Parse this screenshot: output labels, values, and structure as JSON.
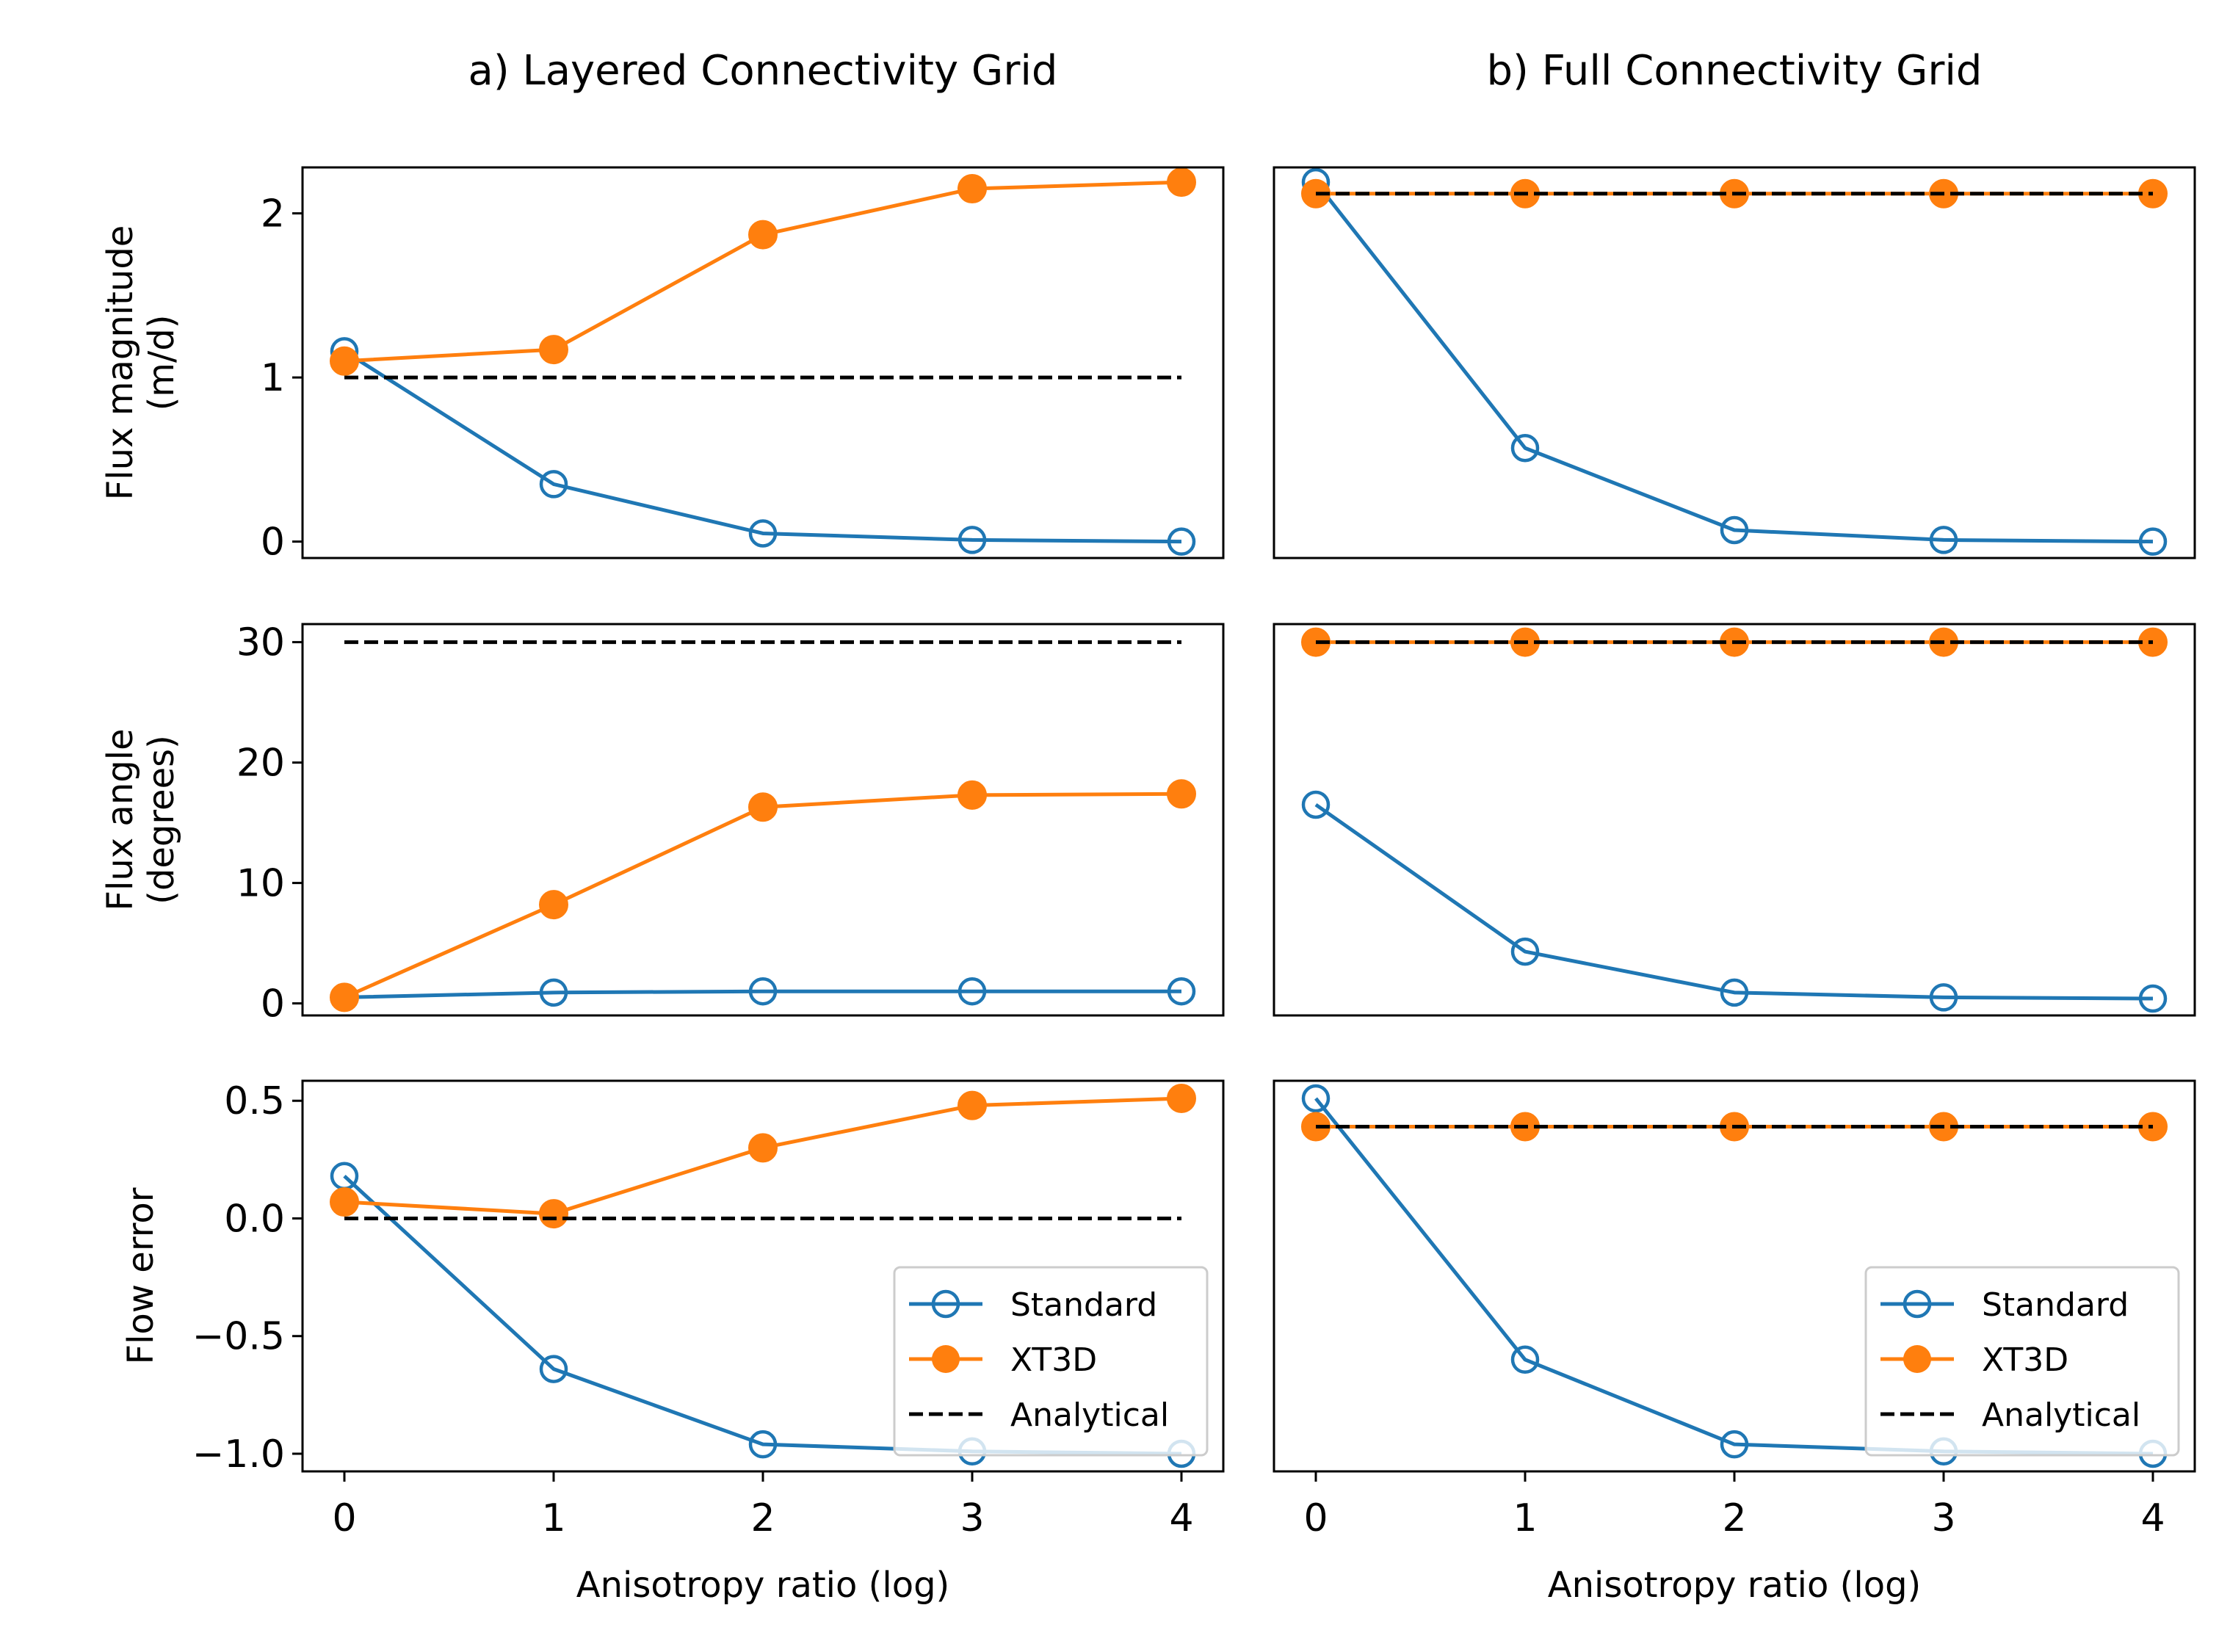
{
  "columns": [
    {
      "title": "a) Layered Connectivity Grid"
    },
    {
      "title": "b) Full Connectivity Grid"
    }
  ],
  "rows": [
    {
      "ylabel_lines": [
        "Flux magnitude",
        "(m/d)"
      ],
      "ylim": [
        -0.1,
        2.28
      ],
      "yticks": [
        0,
        1,
        2
      ],
      "ytick_labels": [
        "0",
        "1",
        "2"
      ]
    },
    {
      "ylabel_lines": [
        "Flux angle",
        "(degrees)"
      ],
      "ylim": [
        -1.0,
        31.5
      ],
      "yticks": [
        0,
        10,
        20,
        30
      ],
      "ytick_labels": [
        "0",
        "10",
        "20",
        "30"
      ]
    },
    {
      "ylabel_lines": [
        "Flow error"
      ],
      "ylim": [
        -1.075,
        0.585
      ],
      "yticks": [
        -1.0,
        -0.5,
        0.0,
        0.5
      ],
      "ytick_labels": [
        "−1.0",
        "−0.5",
        "0.0",
        "0.5"
      ]
    }
  ],
  "xaxis": {
    "label": "Anisotropy ratio (log)",
    "xlim": [
      -0.2,
      4.2
    ],
    "ticks": [
      0,
      1,
      2,
      3,
      4
    ],
    "tick_labels": [
      "0",
      "1",
      "2",
      "3",
      "4"
    ]
  },
  "legend": {
    "location": "lower-right",
    "entries": [
      {
        "label": "Standard"
      },
      {
        "label": "XT3D"
      },
      {
        "label": "Analytical"
      }
    ]
  },
  "colors": {
    "standard": "#1f77b4",
    "xt3d": "#ff7f0e",
    "analytical": "#000000"
  },
  "chart_data": [
    {
      "type": "line",
      "title": "a) Layered Connectivity Grid",
      "xlabel": "",
      "ylabel": "Flux magnitude (m/d)",
      "ylim": [
        -0.1,
        2.28
      ],
      "x": [
        0,
        1,
        2,
        3,
        4
      ],
      "series": [
        {
          "name": "Standard",
          "values": [
            1.16,
            0.35,
            0.05,
            0.01,
            0.0
          ]
        },
        {
          "name": "XT3D",
          "values": [
            1.1,
            1.17,
            1.87,
            2.15,
            2.19
          ]
        },
        {
          "name": "Analytical",
          "values": [
            1.0,
            1.0,
            1.0,
            1.0,
            1.0
          ]
        }
      ]
    },
    {
      "type": "line",
      "title": "b) Full Connectivity Grid",
      "xlabel": "",
      "ylabel": "",
      "ylim": [
        -0.1,
        2.28
      ],
      "x": [
        0,
        1,
        2,
        3,
        4
      ],
      "series": [
        {
          "name": "Standard",
          "values": [
            2.19,
            0.57,
            0.07,
            0.01,
            0.0
          ]
        },
        {
          "name": "XT3D",
          "values": [
            2.12,
            2.12,
            2.12,
            2.12,
            2.12
          ]
        },
        {
          "name": "Analytical",
          "values": [
            2.12,
            2.12,
            2.12,
            2.12,
            2.12
          ]
        }
      ]
    },
    {
      "type": "line",
      "title": "",
      "xlabel": "",
      "ylabel": "Flux angle (degrees)",
      "ylim": [
        -1.0,
        31.5
      ],
      "x": [
        0,
        1,
        2,
        3,
        4
      ],
      "series": [
        {
          "name": "Standard",
          "values": [
            0.5,
            0.9,
            1.0,
            1.0,
            1.0
          ]
        },
        {
          "name": "XT3D",
          "values": [
            0.5,
            8.2,
            16.3,
            17.3,
            17.4
          ]
        },
        {
          "name": "Analytical",
          "values": [
            30,
            30,
            30,
            30,
            30
          ]
        }
      ]
    },
    {
      "type": "line",
      "title": "",
      "xlabel": "",
      "ylabel": "",
      "ylim": [
        -1.0,
        31.5
      ],
      "x": [
        0,
        1,
        2,
        3,
        4
      ],
      "series": [
        {
          "name": "Standard",
          "values": [
            16.5,
            4.3,
            0.9,
            0.5,
            0.4
          ]
        },
        {
          "name": "XT3D",
          "values": [
            30,
            30,
            30,
            30,
            30
          ]
        },
        {
          "name": "Analytical",
          "values": [
            30,
            30,
            30,
            30,
            30
          ]
        }
      ]
    },
    {
      "type": "line",
      "title": "",
      "xlabel": "Anisotropy ratio (log)",
      "ylabel": "Flow error",
      "ylim": [
        -1.075,
        0.585
      ],
      "x": [
        0,
        1,
        2,
        3,
        4
      ],
      "series": [
        {
          "name": "Standard",
          "values": [
            0.18,
            -0.64,
            -0.96,
            -0.99,
            -1.0
          ]
        },
        {
          "name": "XT3D",
          "values": [
            0.07,
            0.02,
            0.3,
            0.48,
            0.51
          ]
        },
        {
          "name": "Analytical",
          "values": [
            0.0,
            0.0,
            0.0,
            0.0,
            0.0
          ]
        }
      ]
    },
    {
      "type": "line",
      "title": "",
      "xlabel": "Anisotropy ratio (log)",
      "ylabel": "",
      "ylim": [
        -1.075,
        0.585
      ],
      "x": [
        0,
        1,
        2,
        3,
        4
      ],
      "series": [
        {
          "name": "Standard",
          "values": [
            0.51,
            -0.6,
            -0.96,
            -0.99,
            -1.0
          ]
        },
        {
          "name": "XT3D",
          "values": [
            0.39,
            0.39,
            0.39,
            0.39,
            0.39
          ]
        },
        {
          "name": "Analytical",
          "values": [
            0.39,
            0.39,
            0.39,
            0.39,
            0.39
          ]
        }
      ]
    }
  ]
}
